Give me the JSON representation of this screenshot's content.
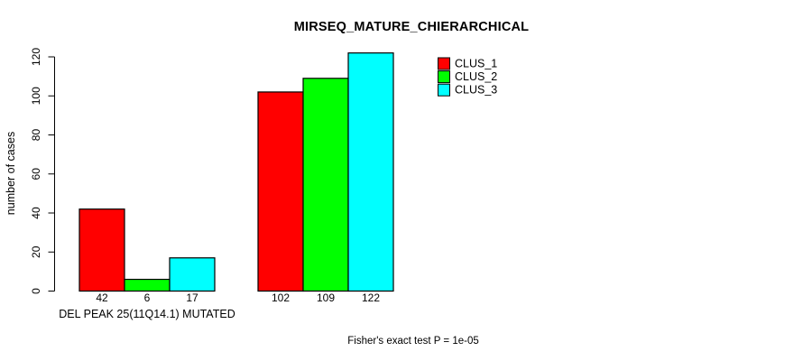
{
  "page": {
    "background_color": "#ffffff"
  },
  "chart_data": {
    "type": "bar",
    "title": "MIRSEQ_MATURE_CHIERARCHICAL",
    "xlabel": "",
    "ylabel": "number of cases",
    "categories": [
      "DEL PEAK 25(11Q14.1) MUTATED",
      ""
    ],
    "series": [
      {
        "name": "CLUS_1",
        "color": "#ff0000",
        "values": [
          42,
          102
        ]
      },
      {
        "name": "CLUS_2",
        "color": "#00ff00",
        "values": [
          6,
          109
        ]
      },
      {
        "name": "CLUS_3",
        "color": "#00ffff",
        "values": [
          17,
          122
        ]
      }
    ],
    "bar_value_labels": [
      [
        "42",
        "6",
        "17"
      ],
      [
        "102",
        "109",
        "122"
      ]
    ],
    "yticks": [
      0,
      20,
      40,
      60,
      80,
      100,
      120
    ],
    "ylim": [
      0,
      120
    ],
    "grid": false,
    "legend_position": "top-right",
    "axis_color": "#000000",
    "bar_border_color": "#000000",
    "footer": "Fisher's exact test P = 1e-05"
  }
}
